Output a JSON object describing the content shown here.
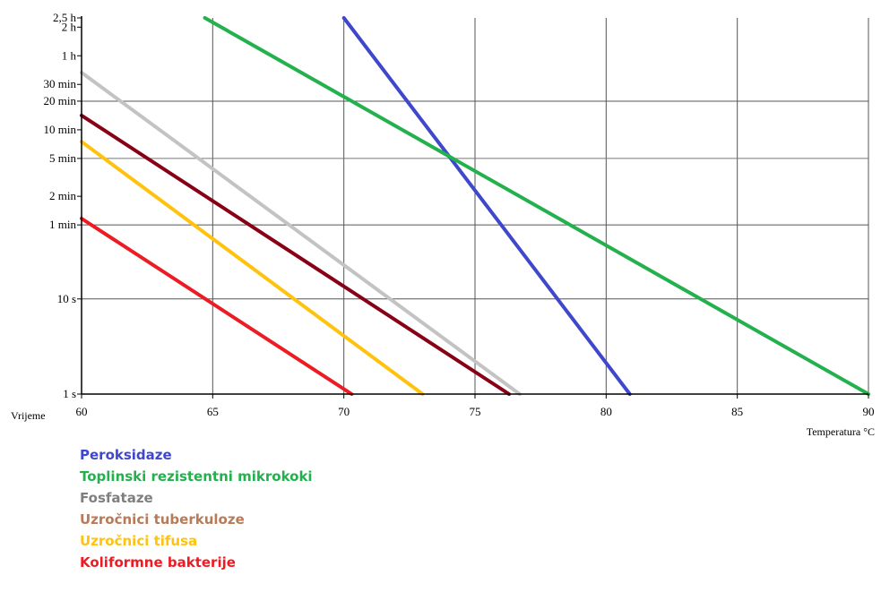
{
  "chart_data": {
    "type": "line",
    "title": "",
    "xlabel": "Temperatura °C",
    "ylabel": "Vrijeme",
    "xlim": [
      60,
      90
    ],
    "x_ticks": [
      60,
      65,
      70,
      75,
      80,
      85,
      90
    ],
    "y_scale": "log",
    "y_unit": "seconds",
    "ylim_seconds": [
      1,
      9000
    ],
    "y_ticks": [
      {
        "label": "2,5 h",
        "seconds": 9000
      },
      {
        "label": "2 h",
        "seconds": 7200
      },
      {
        "label": "1 h",
        "seconds": 3600
      },
      {
        "label": "30 min",
        "seconds": 1800
      },
      {
        "label": "20 min",
        "seconds": 1200
      },
      {
        "label": "10 min",
        "seconds": 600
      },
      {
        "label": "5 min",
        "seconds": 300
      },
      {
        "label": "2 min",
        "seconds": 120
      },
      {
        "label": "1 min",
        "seconds": 60
      },
      {
        "label": "10 s",
        "seconds": 10
      },
      {
        "label": "1 s",
        "seconds": 1
      }
    ],
    "grid_x": [
      65,
      70,
      75,
      80,
      85
    ],
    "grid_y_seconds": [
      1200,
      60,
      10
    ],
    "grid_y_minor_seconds": [
      300
    ],
    "grid": true,
    "legend_position": "below",
    "series": [
      {
        "name": "Peroksidaze",
        "color": "#3f48cc",
        "x": [
          70.0,
          80.9
        ],
        "y": [
          9000,
          1
        ]
      },
      {
        "name": "Toplinski rezistentni mikrokoki",
        "color": "#22b14c",
        "x": [
          64.7,
          90.0
        ],
        "y": [
          9000,
          1
        ]
      },
      {
        "name": "Fosfataze",
        "color": "#c3c3c3",
        "x": [
          60.0,
          76.7
        ],
        "y": [
          2400,
          1
        ]
      },
      {
        "name": "Uzročnici tuberkuloze",
        "color": "#880015",
        "x": [
          60.0,
          76.3
        ],
        "y": [
          850,
          1
        ]
      },
      {
        "name": "Uzročnici tifusa",
        "color": "#ffc20e",
        "x": [
          60.0,
          73.0
        ],
        "y": [
          450,
          1
        ]
      },
      {
        "name": "Koliformne bakterije",
        "color": "#ed1c24",
        "x": [
          60.0,
          70.3
        ],
        "y": [
          70,
          1
        ]
      }
    ],
    "legend_text_colors": [
      "#3f48cc",
      "#22b14c",
      "#7f7f7f",
      "#b97a57",
      "#ffc20e",
      "#ed1c24"
    ]
  }
}
